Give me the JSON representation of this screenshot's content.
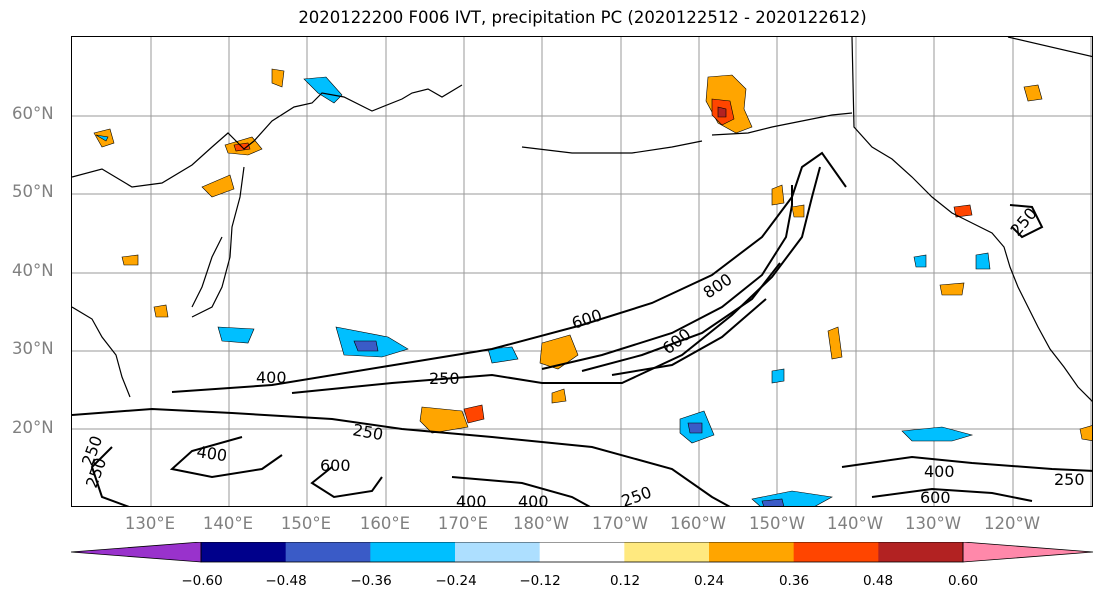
{
  "title": "2020122200 F006 IVT, precipitation PC (2020122512 - 2020122612)",
  "lat_labels": [
    "60°N",
    "50°N",
    "40°N",
    "30°N",
    "20°N"
  ],
  "lon_labels": [
    "130°E",
    "140°E",
    "150°E",
    "160°E",
    "170°E",
    "180°W",
    "170°W",
    "160°W",
    "150°W",
    "140°W",
    "130°W",
    "120°W"
  ],
  "contour_labels": [
    "250",
    "400",
    "600",
    "800",
    "250",
    "400",
    "250",
    "400",
    "250",
    "600",
    "400",
    "600",
    "250",
    "400",
    "600",
    "250",
    "250"
  ],
  "colorbar": {
    "colors": [
      "#9932CC",
      "#00008B",
      "#3A5BC7",
      "#00BFFF",
      "#ADDFFF",
      "#FFFFFF",
      "#FFE97F",
      "#FFA500",
      "#FF4500",
      "#B22222",
      "#FF88AA"
    ],
    "ticks": [
      "−0.60",
      "−0.48",
      "−0.36",
      "−0.24",
      "−0.12",
      "0.12",
      "0.24",
      "0.36",
      "0.48",
      "0.60"
    ]
  }
}
